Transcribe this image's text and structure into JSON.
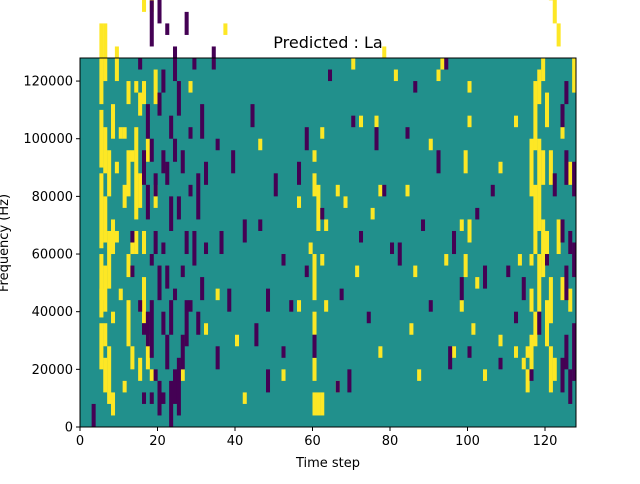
{
  "chart_data": {
    "type": "heatmap",
    "title": "Predicted : La",
    "xlabel": "Time step",
    "ylabel": "Frequency (Hz)",
    "xlim": [
      0,
      128
    ],
    "ylim": [
      0,
      128000
    ],
    "x_ticks": [
      0,
      20,
      40,
      60,
      80,
      100,
      120
    ],
    "y_ticks": [
      0,
      20000,
      40000,
      60000,
      80000,
      100000,
      120000
    ],
    "x_tick_labels": [
      "0",
      "20",
      "40",
      "60",
      "80",
      "100",
      "120"
    ],
    "y_tick_labels": [
      "0",
      "20000",
      "40000",
      "60000",
      "80000",
      "100000",
      "120000"
    ],
    "value_levels": [
      -1,
      0,
      1
    ],
    "colors": {
      "low": "#440154",
      "mid": "#21908c",
      "high": "#fde725"
    },
    "default_value": 0,
    "grid": {
      "time_bins": 128,
      "freq_bins": 64,
      "freq_bin_hz": 2000
    },
    "high_cells": [
      [
        5,
        10,
        18
      ],
      [
        5,
        19,
        30
      ],
      [
        5,
        31,
        44
      ],
      [
        5,
        45,
        55
      ],
      [
        5,
        56,
        70
      ],
      [
        5,
        22,
        24
      ],
      [
        6,
        6,
        12
      ],
      [
        6,
        14,
        18
      ],
      [
        6,
        20,
        28
      ],
      [
        6,
        32,
        40
      ],
      [
        6,
        44,
        52
      ],
      [
        6,
        60,
        70
      ],
      [
        7,
        4,
        14
      ],
      [
        7,
        24,
        34
      ],
      [
        7,
        40,
        48
      ],
      [
        8,
        2,
        6
      ],
      [
        8,
        18,
        20
      ],
      [
        8,
        30,
        36
      ],
      [
        8,
        50,
        56
      ],
      [
        9,
        32,
        34
      ],
      [
        9,
        44,
        46
      ],
      [
        9,
        60,
        66
      ],
      [
        10,
        50,
        52
      ],
      [
        10,
        22,
        24
      ],
      [
        11,
        6,
        8
      ],
      [
        11,
        38,
        42
      ],
      [
        11,
        50,
        52
      ],
      [
        12,
        14,
        22
      ],
      [
        12,
        26,
        30
      ],
      [
        12,
        40,
        48
      ],
      [
        12,
        56,
        60
      ],
      [
        13,
        10,
        14
      ],
      [
        13,
        30,
        32
      ],
      [
        13,
        46,
        48
      ],
      [
        14,
        30,
        34
      ],
      [
        14,
        36,
        52
      ],
      [
        14,
        58,
        60
      ],
      [
        15,
        8,
        12
      ],
      [
        15,
        38,
        44
      ],
      [
        15,
        54,
        58
      ],
      [
        16,
        18,
        26
      ],
      [
        16,
        30,
        34
      ],
      [
        16,
        56,
        60
      ],
      [
        16,
        72,
        80
      ],
      [
        17,
        10,
        16
      ],
      [
        17,
        46,
        50
      ],
      [
        18,
        8,
        10
      ],
      [
        18,
        72,
        78
      ],
      [
        19,
        38,
        42
      ],
      [
        19,
        56,
        62
      ],
      [
        19,
        118,
        120
      ],
      [
        21,
        98,
        102
      ],
      [
        24,
        98,
        102
      ],
      [
        26,
        8,
        10
      ],
      [
        28,
        58,
        60
      ],
      [
        32,
        16,
        18
      ],
      [
        35,
        22,
        24
      ],
      [
        37,
        68,
        70
      ],
      [
        40,
        14,
        16
      ],
      [
        42,
        4,
        6
      ],
      [
        46,
        48,
        50
      ],
      [
        48,
        118,
        120
      ],
      [
        52,
        8,
        10
      ],
      [
        54,
        122,
        124
      ],
      [
        56,
        20,
        22
      ],
      [
        56,
        38,
        40
      ],
      [
        59,
        30,
        32
      ],
      [
        60,
        2,
        6
      ],
      [
        60,
        8,
        12
      ],
      [
        60,
        16,
        20
      ],
      [
        60,
        22,
        30
      ],
      [
        60,
        40,
        44
      ],
      [
        60,
        46,
        48
      ],
      [
        61,
        2,
        6
      ],
      [
        61,
        34,
        42
      ],
      [
        61,
        116,
        118
      ],
      [
        62,
        2,
        6
      ],
      [
        62,
        28,
        30
      ],
      [
        62,
        50,
        52
      ],
      [
        63,
        20,
        22
      ],
      [
        63,
        34,
        36
      ],
      [
        66,
        6,
        8
      ],
      [
        66,
        40,
        42
      ],
      [
        68,
        38,
        40
      ],
      [
        70,
        62,
        64
      ],
      [
        71,
        26,
        28
      ],
      [
        72,
        52,
        54
      ],
      [
        74,
        102,
        104
      ],
      [
        75,
        36,
        38
      ],
      [
        76,
        52,
        54
      ],
      [
        77,
        12,
        14
      ],
      [
        77,
        40,
        42
      ],
      [
        78,
        64,
        66
      ],
      [
        80,
        122,
        124
      ],
      [
        81,
        60,
        62
      ],
      [
        84,
        40,
        42
      ],
      [
        85,
        16,
        18
      ],
      [
        86,
        26,
        28
      ],
      [
        87,
        8,
        10
      ],
      [
        90,
        48,
        50
      ],
      [
        92,
        60,
        62
      ],
      [
        93,
        62,
        64
      ],
      [
        94,
        28,
        30
      ],
      [
        96,
        12,
        14
      ],
      [
        98,
        20,
        22
      ],
      [
        98,
        34,
        36
      ],
      [
        99,
        26,
        30
      ],
      [
        99,
        44,
        48
      ],
      [
        99,
        122,
        124
      ],
      [
        100,
        32,
        36
      ],
      [
        100,
        52,
        54
      ],
      [
        100,
        58,
        60
      ],
      [
        101,
        16,
        18
      ],
      [
        101,
        120,
        122
      ],
      [
        102,
        24,
        26
      ],
      [
        104,
        8,
        10
      ],
      [
        108,
        14,
        16
      ],
      [
        108,
        44,
        46
      ],
      [
        110,
        110,
        112
      ],
      [
        112,
        12,
        14
      ],
      [
        112,
        52,
        54
      ],
      [
        113,
        28,
        30
      ],
      [
        114,
        10,
        12
      ],
      [
        115,
        6,
        10
      ],
      [
        115,
        12,
        14
      ],
      [
        116,
        10,
        16
      ],
      [
        116,
        20,
        24
      ],
      [
        116,
        28,
        30
      ],
      [
        116,
        40,
        50
      ],
      [
        117,
        14,
        20
      ],
      [
        117,
        30,
        42
      ],
      [
        117,
        48,
        60
      ],
      [
        118,
        20,
        30
      ],
      [
        118,
        34,
        50
      ],
      [
        118,
        56,
        62
      ],
      [
        119,
        26,
        36
      ],
      [
        119,
        42,
        48
      ],
      [
        119,
        60,
        64
      ],
      [
        120,
        14,
        22
      ],
      [
        120,
        28,
        34
      ],
      [
        120,
        52,
        58
      ],
      [
        121,
        6,
        14
      ],
      [
        121,
        18,
        26
      ],
      [
        121,
        42,
        48
      ],
      [
        121,
        74,
        82
      ],
      [
        122,
        8,
        12
      ],
      [
        122,
        70,
        76
      ],
      [
        122,
        84,
        90
      ],
      [
        122,
        100,
        102
      ],
      [
        123,
        30,
        36
      ],
      [
        123,
        66,
        70
      ],
      [
        124,
        22,
        26
      ],
      [
        124,
        50,
        54
      ],
      [
        126,
        20,
        24
      ],
      [
        126,
        42,
        46
      ],
      [
        127,
        58,
        64
      ]
    ],
    "low_cells": [
      [
        3,
        0,
        4
      ],
      [
        4,
        110,
        116
      ],
      [
        13,
        26,
        28
      ],
      [
        13,
        32,
        34
      ],
      [
        15,
        20,
        22
      ],
      [
        15,
        62,
        64
      ],
      [
        16,
        4,
        6
      ],
      [
        16,
        16,
        18
      ],
      [
        16,
        42,
        48
      ],
      [
        17,
        14,
        20
      ],
      [
        17,
        36,
        42
      ],
      [
        17,
        50,
        56
      ],
      [
        17,
        82,
        86
      ],
      [
        18,
        4,
        6
      ],
      [
        18,
        12,
        22
      ],
      [
        18,
        28,
        30
      ],
      [
        18,
        46,
        50
      ],
      [
        18,
        66,
        74
      ],
      [
        18,
        92,
        96
      ],
      [
        18,
        112,
        120
      ],
      [
        19,
        8,
        10
      ],
      [
        19,
        30,
        34
      ],
      [
        19,
        40,
        44
      ],
      [
        20,
        2,
        8
      ],
      [
        20,
        22,
        28
      ],
      [
        20,
        54,
        58
      ],
      [
        20,
        70,
        80
      ],
      [
        21,
        4,
        6
      ],
      [
        21,
        16,
        20
      ],
      [
        21,
        30,
        32
      ],
      [
        21,
        44,
        48
      ],
      [
        21,
        58,
        62
      ],
      [
        21,
        88,
        92
      ],
      [
        22,
        10,
        16
      ],
      [
        22,
        24,
        28
      ],
      [
        22,
        42,
        46
      ],
      [
        22,
        68,
        70
      ],
      [
        23,
        0,
        8
      ],
      [
        23,
        16,
        22
      ],
      [
        23,
        34,
        40
      ],
      [
        23,
        50,
        54
      ],
      [
        23,
        104,
        108
      ],
      [
        24,
        4,
        10
      ],
      [
        24,
        22,
        24
      ],
      [
        24,
        46,
        50
      ],
      [
        24,
        60,
        66
      ],
      [
        24,
        112,
        116
      ],
      [
        25,
        2,
        12
      ],
      [
        25,
        36,
        40
      ],
      [
        25,
        54,
        60
      ],
      [
        25,
        80,
        84
      ],
      [
        26,
        10,
        16
      ],
      [
        26,
        26,
        28
      ],
      [
        26,
        44,
        48
      ],
      [
        27,
        14,
        22
      ],
      [
        27,
        30,
        34
      ],
      [
        27,
        68,
        72
      ],
      [
        28,
        20,
        22
      ],
      [
        28,
        40,
        42
      ],
      [
        28,
        50,
        52
      ],
      [
        29,
        28,
        34
      ],
      [
        29,
        62,
        64
      ],
      [
        30,
        16,
        20
      ],
      [
        30,
        36,
        44
      ],
      [
        31,
        22,
        26
      ],
      [
        31,
        50,
        56
      ],
      [
        32,
        30,
        32
      ],
      [
        32,
        42,
        46
      ],
      [
        34,
        62,
        66
      ],
      [
        35,
        10,
        14
      ],
      [
        35,
        48,
        50
      ],
      [
        36,
        30,
        34
      ],
      [
        38,
        20,
        24
      ],
      [
        39,
        44,
        48
      ],
      [
        42,
        32,
        36
      ],
      [
        44,
        52,
        56
      ],
      [
        45,
        14,
        18
      ],
      [
        46,
        34,
        36
      ],
      [
        48,
        6,
        10
      ],
      [
        48,
        20,
        24
      ],
      [
        50,
        40,
        44
      ],
      [
        52,
        12,
        14
      ],
      [
        52,
        28,
        30
      ],
      [
        54,
        20,
        22
      ],
      [
        56,
        42,
        46
      ],
      [
        58,
        26,
        28
      ],
      [
        58,
        48,
        52
      ],
      [
        60,
        12,
        16
      ],
      [
        62,
        36,
        38
      ],
      [
        64,
        60,
        62
      ],
      [
        66,
        6,
        8
      ],
      [
        67,
        22,
        24
      ],
      [
        69,
        6,
        10
      ],
      [
        70,
        52,
        54
      ],
      [
        72,
        32,
        34
      ],
      [
        74,
        18,
        20
      ],
      [
        76,
        48,
        52
      ],
      [
        78,
        40,
        42
      ],
      [
        78,
        90,
        92
      ],
      [
        80,
        30,
        32
      ],
      [
        82,
        28,
        32
      ],
      [
        84,
        50,
        52
      ],
      [
        86,
        58,
        60
      ],
      [
        88,
        34,
        36
      ],
      [
        90,
        20,
        22
      ],
      [
        92,
        44,
        48
      ],
      [
        94,
        62,
        64
      ],
      [
        95,
        10,
        14
      ],
      [
        96,
        30,
        34
      ],
      [
        98,
        22,
        26
      ],
      [
        100,
        12,
        14
      ],
      [
        102,
        36,
        38
      ],
      [
        104,
        24,
        28
      ],
      [
        106,
        40,
        42
      ],
      [
        108,
        10,
        12
      ],
      [
        110,
        26,
        28
      ],
      [
        112,
        18,
        20
      ],
      [
        114,
        22,
        26
      ],
      [
        116,
        8,
        10
      ],
      [
        118,
        16,
        20
      ],
      [
        120,
        28,
        30
      ],
      [
        122,
        40,
        44
      ],
      [
        124,
        6,
        12
      ],
      [
        124,
        32,
        36
      ],
      [
        124,
        52,
        56
      ],
      [
        125,
        10,
        16
      ],
      [
        125,
        22,
        28
      ],
      [
        125,
        42,
        48
      ],
      [
        125,
        56,
        60
      ],
      [
        126,
        4,
        10
      ],
      [
        126,
        30,
        34
      ],
      [
        127,
        8,
        18
      ],
      [
        127,
        26,
        32
      ],
      [
        127,
        40,
        46
      ]
    ]
  }
}
